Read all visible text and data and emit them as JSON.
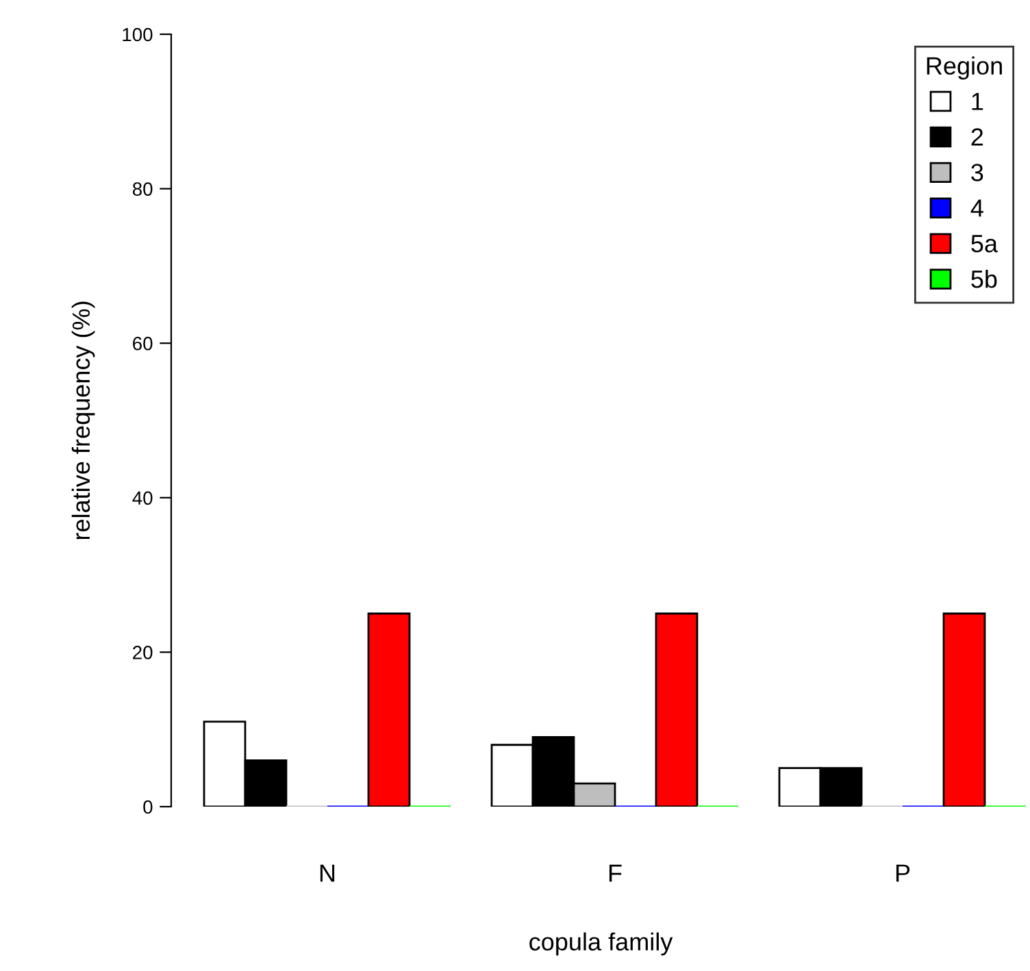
{
  "chart_data": {
    "type": "bar",
    "xlabel": "copula family",
    "ylabel": "relative frequency (%)",
    "legend_title": "Region",
    "categories": [
      "N",
      "F",
      "P"
    ],
    "series": [
      {
        "name": "1",
        "color": "#ffffff",
        "values": [
          11,
          8,
          5
        ]
      },
      {
        "name": "2",
        "color": "#000000",
        "values": [
          6,
          9,
          5
        ]
      },
      {
        "name": "3",
        "color": "#bebebe",
        "values": [
          0,
          3,
          0
        ]
      },
      {
        "name": "4",
        "color": "#0000ff",
        "values": [
          0,
          0,
          0
        ]
      },
      {
        "name": "5a",
        "color": "#ff0000",
        "values": [
          25,
          25,
          25
        ]
      },
      {
        "name": "5b",
        "color": "#00ff00",
        "values": [
          0,
          0,
          0
        ]
      }
    ],
    "ylim": [
      0,
      100
    ],
    "yticks": [
      0,
      20,
      40,
      60,
      80,
      100
    ],
    "grid": false,
    "legend": "top right"
  }
}
